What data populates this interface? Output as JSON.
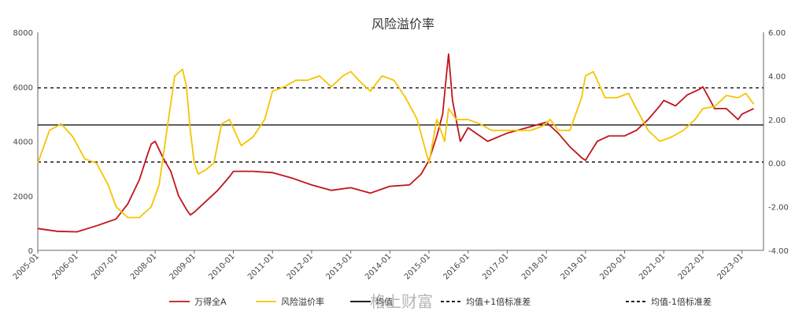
{
  "chart_data": {
    "type": "line",
    "title": "风险溢价率",
    "left_axis": {
      "ylim": [
        0,
        8000
      ],
      "ticks": [
        "0",
        "2000",
        "4000",
        "6000",
        "8000"
      ]
    },
    "right_axis": {
      "ylim": [
        -4,
        6
      ],
      "ticks": [
        "-4.00",
        "-2.00",
        "0.00",
        "2.00",
        "4.00",
        "6.00"
      ]
    },
    "x_ticks": [
      "2005-01",
      "2006-01",
      "2007-01",
      "2008-01",
      "2009-01",
      "2010-01",
      "2011-01",
      "2012-01",
      "2013-01",
      "2014-01",
      "2015-01",
      "2016-01",
      "2017-01",
      "2018-01",
      "2019-01",
      "2020-01",
      "2021-01",
      "2022-01",
      "2023-01"
    ],
    "series": [
      {
        "name": "万得全A",
        "axis": "left",
        "color": "#c0141c",
        "x": [
          2005.0,
          2005.5,
          2006.0,
          2006.5,
          2007.0,
          2007.3,
          2007.6,
          2007.8,
          2007.9,
          2008.0,
          2008.2,
          2008.4,
          2008.6,
          2008.8,
          2008.9,
          2009.0,
          2009.3,
          2009.6,
          2009.9,
          2010.0,
          2010.5,
          2011.0,
          2011.5,
          2012.0,
          2012.5,
          2013.0,
          2013.5,
          2014.0,
          2014.5,
          2014.8,
          2015.0,
          2015.2,
          2015.35,
          2015.45,
          2015.5,
          2015.6,
          2015.8,
          2016.0,
          2016.5,
          2017.0,
          2017.5,
          2018.0,
          2018.3,
          2018.6,
          2018.9,
          2019.0,
          2019.3,
          2019.6,
          2020.0,
          2020.3,
          2020.6,
          2020.9,
          2021.0,
          2021.3,
          2021.6,
          2021.9,
          2022.0,
          2022.3,
          2022.6,
          2022.9,
          2023.0,
          2023.3
        ],
        "values": [
          800,
          700,
          680,
          900,
          1150,
          1700,
          2600,
          3500,
          3900,
          4000,
          3400,
          2900,
          2000,
          1500,
          1300,
          1400,
          1800,
          2200,
          2700,
          2900,
          2900,
          2850,
          2650,
          2400,
          2200,
          2300,
          2100,
          2350,
          2400,
          2800,
          3300,
          4200,
          5000,
          6500,
          7200,
          5500,
          4000,
          4500,
          4000,
          4300,
          4500,
          4700,
          4300,
          3800,
          3400,
          3300,
          4000,
          4200,
          4200,
          4400,
          4800,
          5300,
          5500,
          5300,
          5700,
          5900,
          6000,
          5200,
          5200,
          4800,
          5000,
          5200
        ]
      },
      {
        "name": "风险溢价率",
        "axis": "right",
        "color": "#f5c400",
        "x": [
          2005.0,
          2005.3,
          2005.6,
          2005.9,
          2006.2,
          2006.5,
          2006.8,
          2007.0,
          2007.3,
          2007.6,
          2007.9,
          2008.1,
          2008.3,
          2008.5,
          2008.7,
          2008.8,
          2008.9,
          2009.0,
          2009.1,
          2009.3,
          2009.5,
          2009.7,
          2009.9,
          2010.2,
          2010.5,
          2010.8,
          2011.0,
          2011.3,
          2011.6,
          2011.9,
          2012.2,
          2012.5,
          2012.8,
          2013.0,
          2013.2,
          2013.5,
          2013.8,
          2014.1,
          2014.4,
          2014.7,
          2015.0,
          2015.2,
          2015.4,
          2015.5,
          2015.7,
          2016.0,
          2016.3,
          2016.6,
          2017.0,
          2017.3,
          2017.6,
          2017.9,
          2018.1,
          2018.3,
          2018.6,
          2018.9,
          2019.0,
          2019.2,
          2019.5,
          2019.8,
          2020.1,
          2020.3,
          2020.6,
          2020.9,
          2021.2,
          2021.5,
          2021.8,
          2022.0,
          2022.3,
          2022.6,
          2022.9,
          2023.1,
          2023.3
        ],
        "values": [
          0.0,
          1.5,
          1.8,
          1.2,
          0.2,
          0.0,
          -1.0,
          -2.0,
          -2.5,
          -2.5,
          -2.0,
          -1.0,
          1.5,
          4.0,
          4.3,
          3.5,
          1.5,
          0.0,
          -0.5,
          -0.3,
          0.0,
          1.8,
          2.0,
          0.8,
          1.2,
          2.0,
          3.3,
          3.5,
          3.8,
          3.8,
          4.0,
          3.5,
          4.0,
          4.2,
          3.8,
          3.3,
          4.0,
          3.8,
          3.0,
          2.0,
          0.0,
          2.0,
          1.0,
          2.5,
          2.0,
          2.0,
          1.8,
          1.5,
          1.5,
          1.5,
          1.5,
          1.7,
          2.0,
          1.5,
          1.5,
          3.0,
          4.0,
          4.2,
          3.0,
          3.0,
          3.2,
          2.5,
          1.5,
          1.0,
          1.2,
          1.5,
          2.0,
          2.5,
          2.6,
          3.1,
          3.0,
          3.2,
          2.7
        ]
      }
    ],
    "reference_lines": [
      {
        "name": "均值",
        "axis": "right",
        "value": 1.75,
        "style": "solid",
        "color": "#000000"
      },
      {
        "name": "均值+1倍标准差",
        "axis": "right",
        "value": 3.45,
        "style": "dashed",
        "color": "#000000"
      },
      {
        "name": "均值-1倍标准差",
        "axis": "right",
        "value": 0.05,
        "style": "dashed",
        "color": "#000000"
      }
    ],
    "legend": {
      "position": "bottom",
      "items": [
        {
          "label": "万得全A",
          "color": "#c0141c",
          "style": "solid"
        },
        {
          "label": "风险溢价率",
          "color": "#f5c400",
          "style": "solid"
        },
        {
          "label": "均值",
          "color": "#000000",
          "style": "solid"
        },
        {
          "label": "均值+1倍标准差",
          "color": "#000000",
          "style": "dashed"
        },
        {
          "label": "均值-1倍标准差",
          "color": "#000000",
          "style": "dashed"
        }
      ]
    },
    "watermark": "格上财富",
    "grid": false
  }
}
